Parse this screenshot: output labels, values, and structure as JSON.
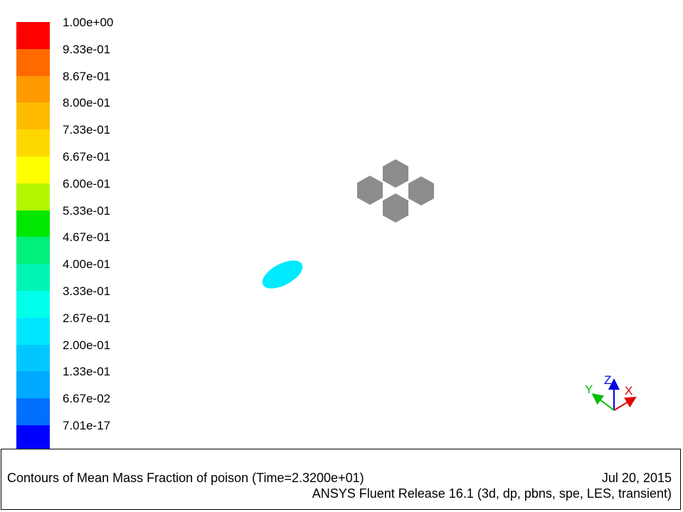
{
  "colorbar": {
    "levels": [
      {
        "label": "1.00e+00",
        "color": "#ff0000"
      },
      {
        "label": "9.33e-01",
        "color": "#ff6a00"
      },
      {
        "label": "8.67e-01",
        "color": "#ff9a00"
      },
      {
        "label": "8.00e-01",
        "color": "#ffbb00"
      },
      {
        "label": "7.33e-01",
        "color": "#ffd700"
      },
      {
        "label": "6.67e-01",
        "color": "#ffff00"
      },
      {
        "label": "6.00e-01",
        "color": "#b4f500"
      },
      {
        "label": "5.33e-01",
        "color": "#00e800"
      },
      {
        "label": "4.67e-01",
        "color": "#00f07a"
      },
      {
        "label": "4.00e-01",
        "color": "#00f5b4"
      },
      {
        "label": "3.33e-01",
        "color": "#00ffea"
      },
      {
        "label": "2.67e-01",
        "color": "#00e6ff"
      },
      {
        "label": "2.00e-01",
        "color": "#00c8ff"
      },
      {
        "label": "1.33e-01",
        "color": "#00aaff"
      },
      {
        "label": "6.67e-02",
        "color": "#0070ff"
      },
      {
        "label": "7.01e-17",
        "color": "#0000ff"
      }
    ]
  },
  "scene": {
    "plume_color": "#00eaff",
    "obstacle_color": "#8c8c8c"
  },
  "axes": {
    "x": {
      "label": "X",
      "color": "#e00000"
    },
    "y": {
      "label": "Y",
      "color": "#00c000"
    },
    "z": {
      "label": "Z",
      "color": "#0000e0"
    }
  },
  "caption": {
    "title": "Contours of Mean Mass Fraction of poison  (Time=2.3200e+01)",
    "date": "Jul 20, 2015",
    "release": "ANSYS Fluent Release 16.1 (3d, dp, pbns, spe, LES, transient)"
  }
}
